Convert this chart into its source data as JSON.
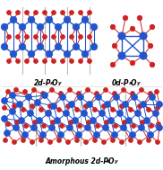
{
  "background_color": "#ffffff",
  "blue_color": "#2255cc",
  "red_color": "#cc2222",
  "gray_line_color": "#aaaaaa",
  "figsize": [
    1.82,
    1.89
  ],
  "dpi": 100,
  "label_2d": "2d-P",
  "label_0d": "0d-P",
  "label_amorphous": "Amorphous 2d-P",
  "sub_x": "x",
  "sub_O": "O",
  "sub_y": "y"
}
